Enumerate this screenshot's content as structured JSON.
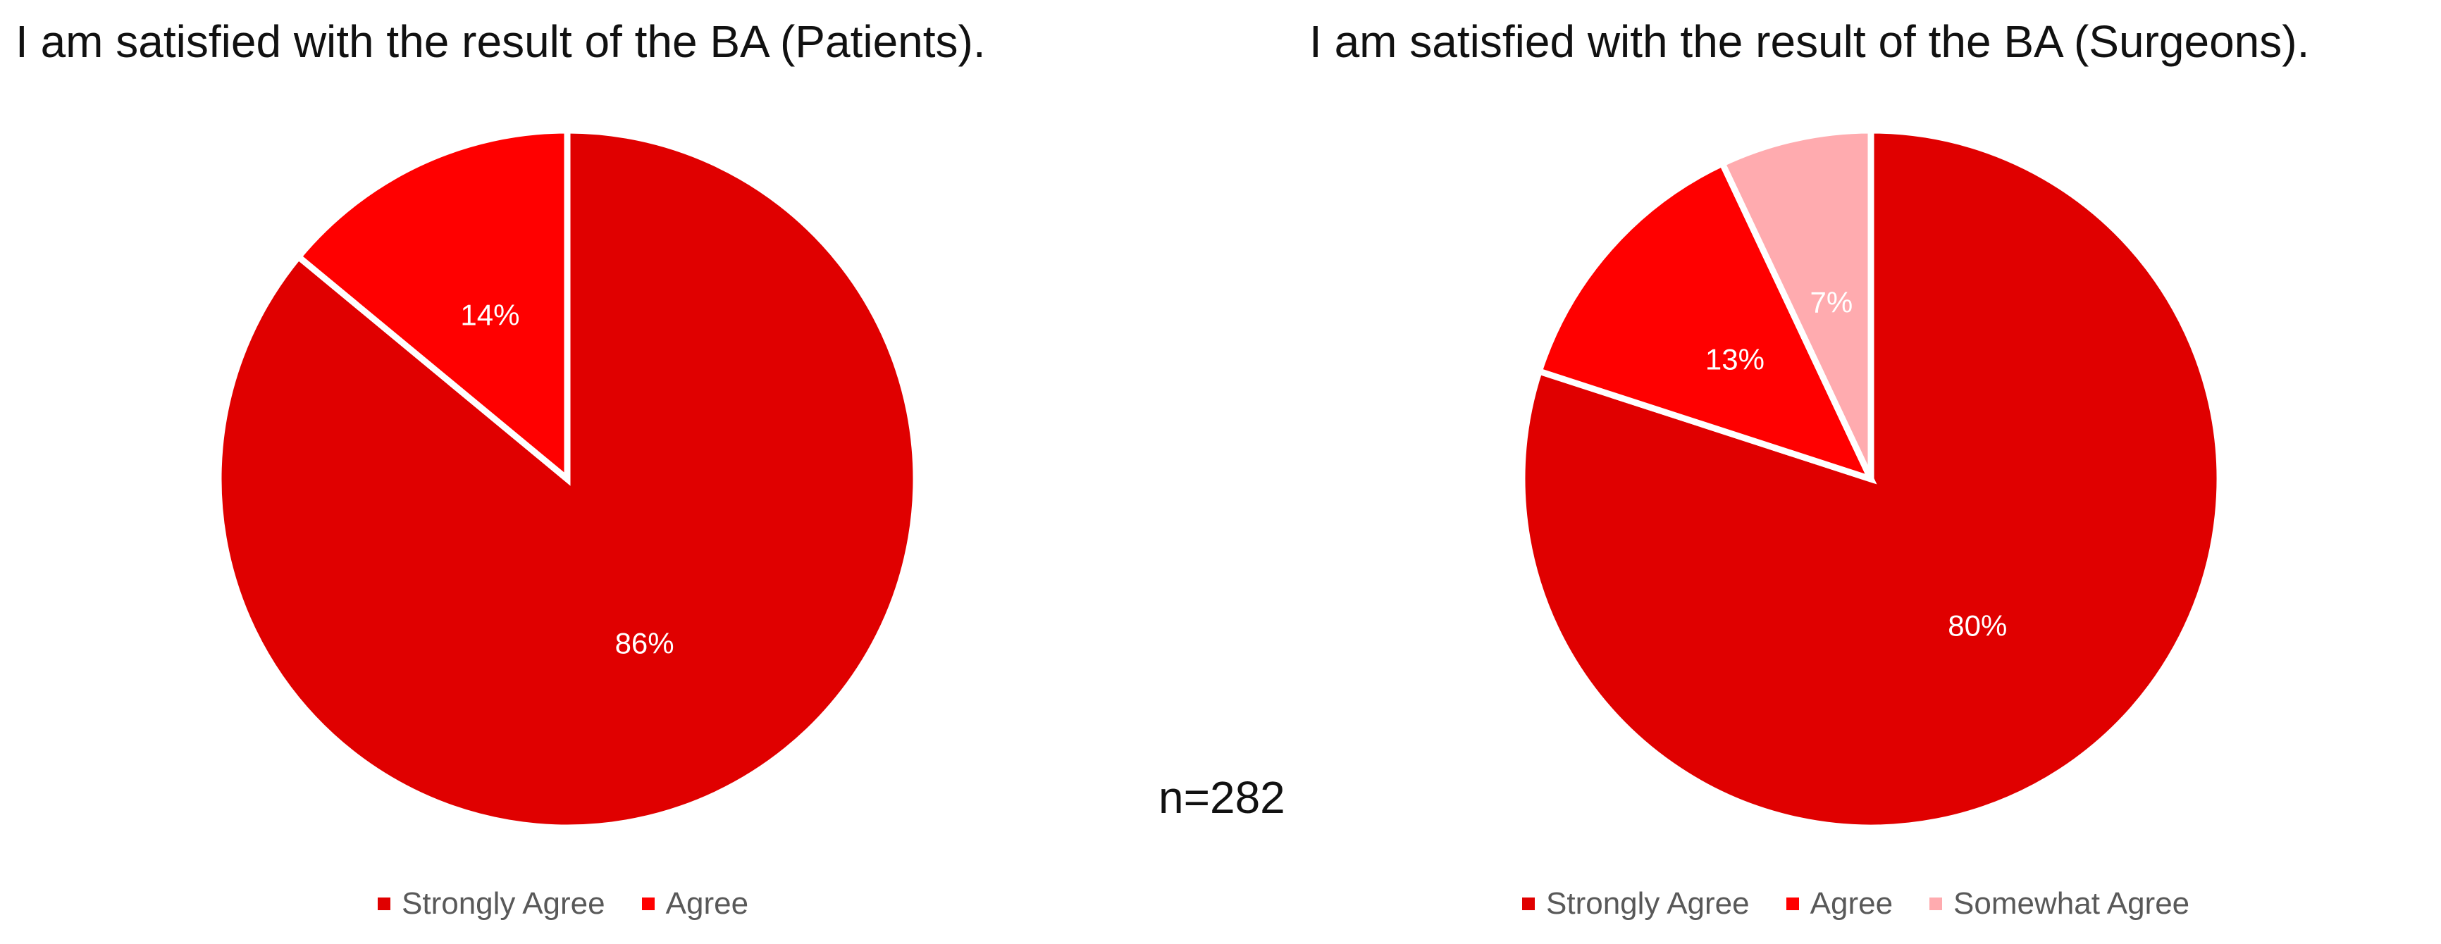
{
  "sample_size": "n=282",
  "chart_data": [
    {
      "type": "pie",
      "title": "I am satisfied with the result of the BA (Patients).",
      "legend_position": "bottom",
      "slices": [
        {
          "label": "Strongly Agree",
          "value": 86,
          "data_label": "86%",
          "color": "#E00000"
        },
        {
          "label": "Agree",
          "value": 14,
          "data_label": "14%",
          "color": "#FF0000"
        }
      ]
    },
    {
      "type": "pie",
      "title": "I am satisfied with the result of the BA (Surgeons).",
      "legend_position": "bottom",
      "slices": [
        {
          "label": "Strongly Agree",
          "value": 80,
          "data_label": "80%",
          "color": "#E00000"
        },
        {
          "label": "Agree",
          "value": 13,
          "data_label": "13%",
          "color": "#FF0000"
        },
        {
          "label": "Somewhat Agree",
          "value": 7,
          "data_label": "7%",
          "color": "#FFABAF"
        }
      ]
    }
  ]
}
